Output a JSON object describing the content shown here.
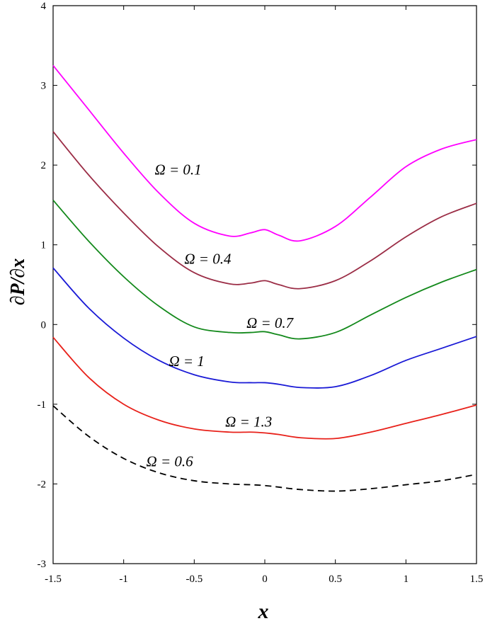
{
  "chart_data": {
    "type": "line",
    "title": "",
    "xlabel": "x",
    "ylabel": "∂P/∂x",
    "xlim": [
      -1.5,
      1.5
    ],
    "ylim": [
      -3,
      4
    ],
    "xticks": [
      -1.5,
      -1,
      -0.5,
      0,
      0.5,
      1,
      1.5
    ],
    "xtick_labels": [
      "-1.5",
      "-1",
      "-0.5",
      "0",
      "0.5",
      "1",
      "1.5"
    ],
    "yticks": [
      -3,
      -2,
      -1,
      0,
      1,
      2,
      3,
      4
    ],
    "ytick_labels": [
      "-3",
      "-2",
      "-1",
      "0",
      "1",
      "2",
      "3",
      "4"
    ],
    "grid": false,
    "x": [
      -1.5,
      -1.25,
      -1.0,
      -0.75,
      -0.5,
      -0.25,
      -0.1,
      0.0,
      0.1,
      0.25,
      0.5,
      0.75,
      1.0,
      1.25,
      1.5
    ],
    "series": [
      {
        "name": "Ω = 0.1",
        "color": "#ff00ff",
        "dash": "solid",
        "values": [
          3.25,
          2.7,
          2.15,
          1.65,
          1.27,
          1.11,
          1.15,
          1.19,
          1.12,
          1.05,
          1.23,
          1.6,
          1.98,
          2.2,
          2.32
        ],
        "label": "Ω = 0.1",
        "label_at": [
          -0.78,
          1.88
        ]
      },
      {
        "name": "Ω = 0.4",
        "color": "#9b2d46",
        "dash": "solid",
        "values": [
          2.42,
          1.88,
          1.4,
          0.97,
          0.65,
          0.51,
          0.52,
          0.55,
          0.5,
          0.45,
          0.55,
          0.8,
          1.1,
          1.35,
          1.52
        ],
        "label": "Ω = 0.4",
        "label_at": [
          -0.57,
          0.76
        ]
      },
      {
        "name": "Ω = 0.7",
        "color": "#13891b",
        "dash": "solid",
        "values": [
          1.56,
          1.05,
          0.6,
          0.23,
          -0.03,
          -0.1,
          -0.1,
          -0.09,
          -0.13,
          -0.18,
          -0.1,
          0.12,
          0.34,
          0.53,
          0.69
        ],
        "label": "Ω = 0.7",
        "label_at": [
          -0.13,
          -0.04
        ]
      },
      {
        "name": "Ω = 1",
        "color": "#1a1ad6",
        "dash": "solid",
        "values": [
          0.71,
          0.21,
          -0.17,
          -0.45,
          -0.63,
          -0.72,
          -0.73,
          -0.73,
          -0.75,
          -0.79,
          -0.78,
          -0.64,
          -0.45,
          -0.3,
          -0.15
        ],
        "label": "Ω = 1",
        "label_at": [
          -0.68,
          -0.52
        ]
      },
      {
        "name": "Ω = 1.3",
        "color": "#e8211a",
        "dash": "solid",
        "values": [
          -0.16,
          -0.66,
          -1.0,
          -1.2,
          -1.31,
          -1.35,
          -1.35,
          -1.36,
          -1.38,
          -1.42,
          -1.43,
          -1.35,
          -1.24,
          -1.13,
          -1.01
        ],
        "label": "Ω = 1.3",
        "label_at": [
          -0.28,
          -1.28
        ]
      },
      {
        "name": "Ω = 0.6",
        "color": "#000000",
        "dash": "dashed",
        "values": [
          -1.02,
          -1.4,
          -1.68,
          -1.86,
          -1.96,
          -2.0,
          -2.01,
          -2.02,
          -2.04,
          -2.07,
          -2.09,
          -2.06,
          -2.01,
          -1.96,
          -1.88
        ],
        "label": "Ω = 0.6",
        "label_at": [
          -0.84,
          -1.78
        ]
      }
    ]
  }
}
